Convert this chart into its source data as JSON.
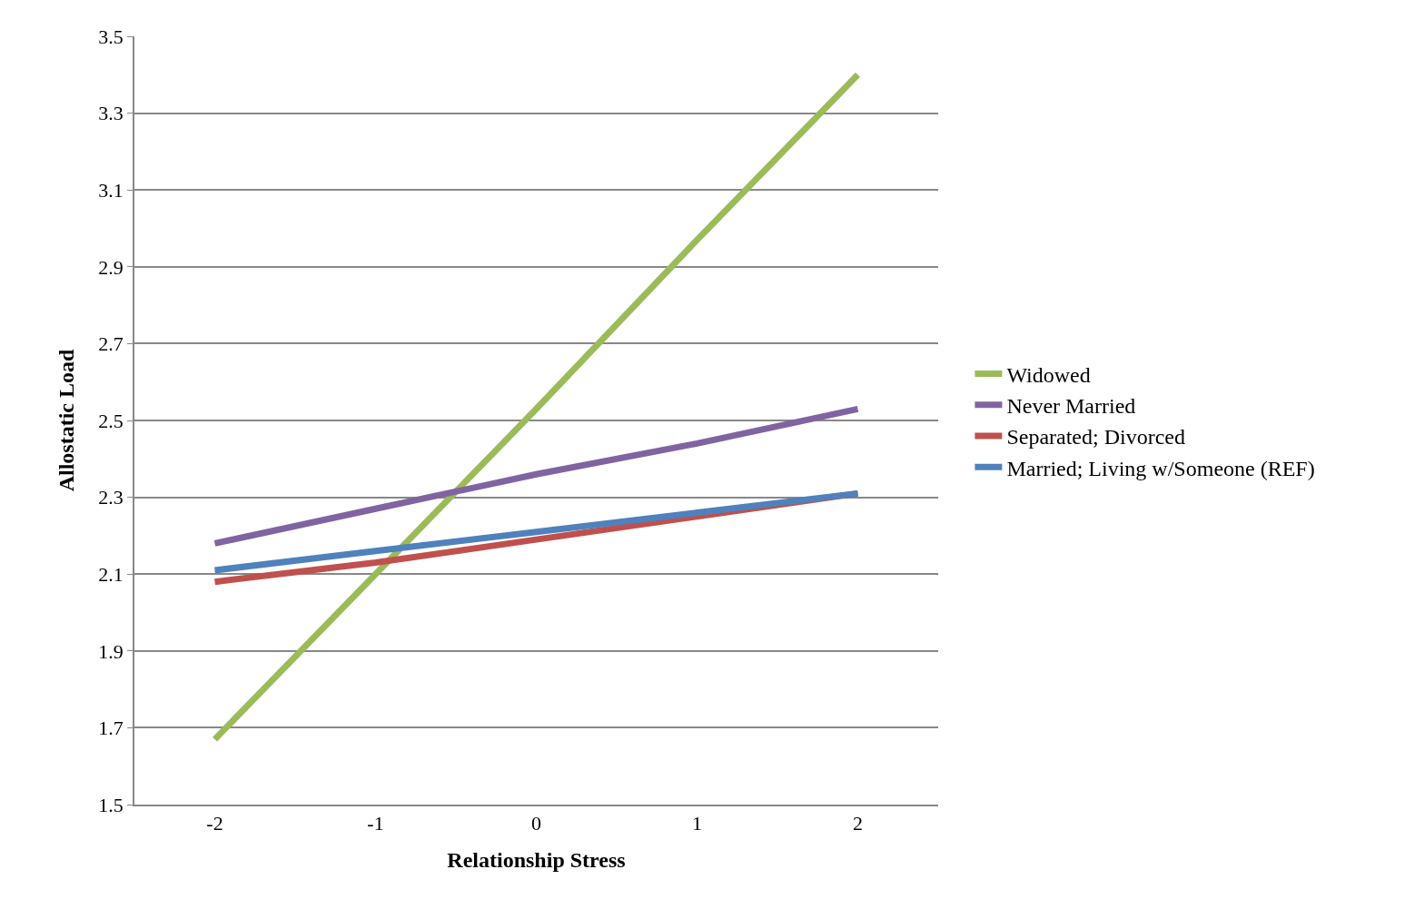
{
  "chart_data": {
    "type": "line",
    "xlabel": "Relationship Stress",
    "ylabel": "Allostatic Load",
    "categories": [
      "-2",
      "-1",
      "0",
      "1",
      "2"
    ],
    "series": [
      {
        "name": "Widowed",
        "color": "#9bbb59",
        "values": [
          1.67,
          2.1,
          2.53,
          2.97,
          3.4
        ]
      },
      {
        "name": "Never Married",
        "color": "#8064a2",
        "values": [
          2.18,
          2.27,
          2.36,
          2.44,
          2.53
        ]
      },
      {
        "name": "Separated; Divorced",
        "color": "#c0504d",
        "values": [
          2.08,
          2.13,
          2.19,
          2.25,
          2.31
        ]
      },
      {
        "name": "Married; Living w/Someone (REF)",
        "color": "#4f81bd",
        "values": [
          2.11,
          2.16,
          2.21,
          2.26,
          2.31
        ]
      }
    ],
    "ylim": [
      1.5,
      3.5
    ],
    "yticks": [
      1.5,
      1.7,
      1.9,
      2.1,
      2.3,
      2.5,
      2.7,
      2.9,
      3.1,
      3.3,
      3.5
    ],
    "grid": "y",
    "legend": "right",
    "marker": "none",
    "line_style": "solid"
  }
}
